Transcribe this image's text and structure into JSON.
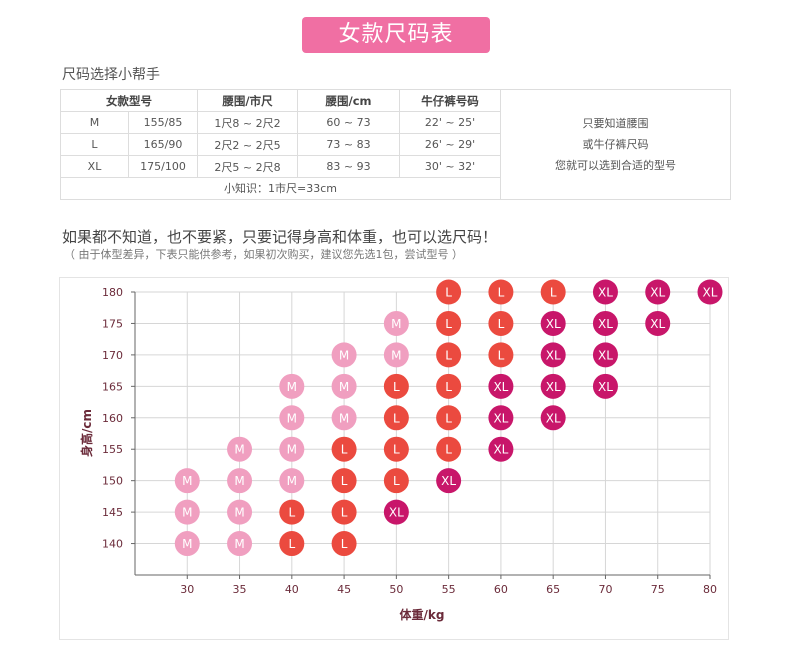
{
  "banner": {
    "title": "女款尺码表"
  },
  "helper": {
    "title": "尺码选择小帮手"
  },
  "size_table": {
    "headers": [
      "女款型号",
      "腰围/市尺",
      "腰围/cm",
      "牛仔裤号码"
    ],
    "rows": [
      [
        "M",
        "155/85",
        "1尺8 ~ 2尺2",
        "60 ~ 73",
        "22' ~ 25'"
      ],
      [
        "L",
        "165/90",
        "2尺2 ~ 2尺5",
        "73 ~ 83",
        "26' ~ 29'"
      ],
      [
        "XL",
        "175/100",
        "2尺5 ~ 2尺8",
        "83 ~ 93",
        "30' ~ 32'"
      ]
    ],
    "note": "小知识：1市尺=33cm",
    "tip_lines": [
      "只要知道腰围",
      "或牛仔裤尺码",
      "您就可以选到合适的型号"
    ]
  },
  "guide": {
    "question": "如果都不知道，也不要紧，只要记得身高和体重，也可以选尺码！",
    "subnote": "（ 由于体型差异，下表只能供参考，如果初次购买，建议您先选1包，尝试型号 ）"
  },
  "colors": {
    "M": "#f09fc0",
    "L": "#eb4a3f",
    "XL": "#c8166a",
    "banner": "#f06fa3"
  },
  "chart_data": {
    "type": "scatter",
    "title": "",
    "xlabel": "体重/kg",
    "ylabel": "身高/cm",
    "x_ticks": [
      30,
      35,
      40,
      45,
      50,
      55,
      60,
      65,
      70,
      75,
      80
    ],
    "y_ticks": [
      140,
      145,
      150,
      155,
      160,
      165,
      170,
      175,
      180
    ],
    "xlim": [
      25,
      80
    ],
    "ylim": [
      135,
      180
    ],
    "grid": true,
    "series": [
      {
        "name": "M",
        "points": [
          [
            30,
            140
          ],
          [
            30,
            145
          ],
          [
            30,
            150
          ],
          [
            35,
            140
          ],
          [
            35,
            145
          ],
          [
            35,
            150
          ],
          [
            35,
            155
          ],
          [
            40,
            150
          ],
          [
            40,
            155
          ],
          [
            40,
            160
          ],
          [
            40,
            165
          ],
          [
            45,
            160
          ],
          [
            45,
            165
          ],
          [
            45,
            170
          ],
          [
            50,
            170
          ],
          [
            50,
            175
          ]
        ]
      },
      {
        "name": "L",
        "points": [
          [
            40,
            140
          ],
          [
            40,
            145
          ],
          [
            45,
            140
          ],
          [
            45,
            145
          ],
          [
            45,
            150
          ],
          [
            45,
            155
          ],
          [
            50,
            150
          ],
          [
            50,
            155
          ],
          [
            50,
            160
          ],
          [
            50,
            165
          ],
          [
            55,
            155
          ],
          [
            55,
            160
          ],
          [
            55,
            165
          ],
          [
            55,
            170
          ],
          [
            55,
            175
          ],
          [
            55,
            180
          ],
          [
            60,
            170
          ],
          [
            60,
            175
          ],
          [
            60,
            180
          ],
          [
            65,
            180
          ]
        ]
      },
      {
        "name": "XL",
        "points": [
          [
            50,
            145
          ],
          [
            55,
            150
          ],
          [
            60,
            155
          ],
          [
            60,
            160
          ],
          [
            60,
            165
          ],
          [
            65,
            160
          ],
          [
            65,
            165
          ],
          [
            65,
            170
          ],
          [
            65,
            175
          ],
          [
            70,
            165
          ],
          [
            70,
            170
          ],
          [
            70,
            175
          ],
          [
            70,
            180
          ],
          [
            75,
            175
          ],
          [
            75,
            180
          ],
          [
            80,
            180
          ]
        ]
      }
    ]
  }
}
